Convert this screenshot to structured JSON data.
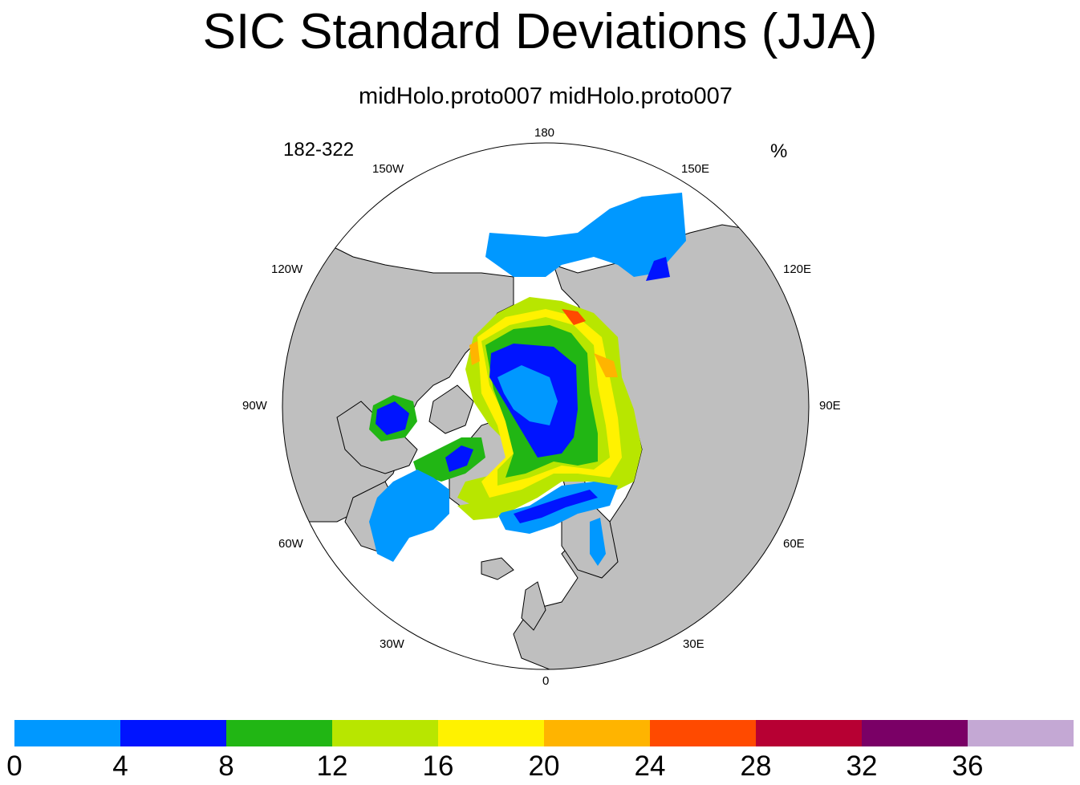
{
  "title": "SIC Standard Deviations (JJA)",
  "subtitle": "midHolo.proto007  midHolo.proto007",
  "left_string": "182-322",
  "right_string": "%",
  "longitude_labels": {
    "n180": "180",
    "e150": "150E",
    "e120": "120E",
    "e90": "90E",
    "e60": "60E",
    "e30": "30E",
    "n0": "0",
    "w30": "30W",
    "w60": "60W",
    "w90": "90W",
    "w120": "120W",
    "w150": "150W"
  },
  "colors": {
    "land": "#bfbfbf",
    "ocean": "#ffffff",
    "c0_4": "#0098ff",
    "c4_8": "#0014ff",
    "c8_12": "#21b614",
    "c12_16": "#b8e600",
    "c16_20": "#fff200",
    "c20_24": "#ffb400",
    "c24_28": "#ff4a00",
    "c28_32": "#b70033",
    "c32_36": "#7a0066",
    "c36_up": "#c4a8d4"
  },
  "colorbar": {
    "labels": [
      "0",
      "4",
      "8",
      "12",
      "16",
      "20",
      "24",
      "28",
      "32",
      "36"
    ]
  }
}
